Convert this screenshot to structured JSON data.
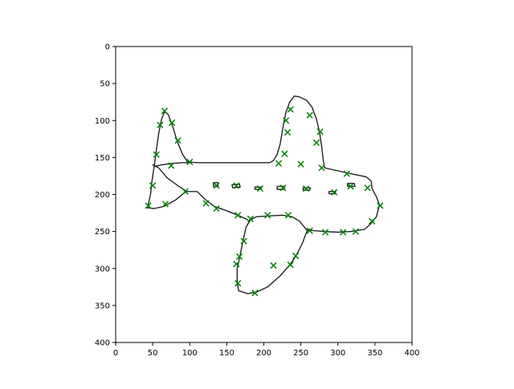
{
  "chart_data": {
    "type": "scatter",
    "title": "",
    "xlabel": "",
    "ylabel": "",
    "xlim": [
      0,
      400
    ],
    "ylim": [
      400,
      0
    ],
    "y_inverted": true,
    "grid": false,
    "x_ticks": [
      0,
      50,
      100,
      150,
      200,
      250,
      300,
      350,
      400
    ],
    "y_ticks": [
      0,
      50,
      100,
      150,
      200,
      250,
      300,
      350,
      400
    ],
    "x_tick_labels": [
      "0",
      "50",
      "100",
      "150",
      "200",
      "250",
      "300",
      "350",
      "400"
    ],
    "y_tick_labels": [
      "0",
      "50",
      "100",
      "150",
      "200",
      "250",
      "300",
      "350",
      "400"
    ],
    "series": [
      {
        "type": "line",
        "color": "#222222",
        "segments": [
          [
            [
              43,
              218
            ],
            [
              47,
              200
            ],
            [
              49,
              182
            ],
            [
              52,
              162
            ],
            [
              55,
              140
            ],
            [
              58,
              118
            ],
            [
              62,
              98
            ],
            [
              66,
              88
            ],
            [
              71,
              92
            ],
            [
              77,
              108
            ],
            [
              83,
              128
            ],
            [
              90,
              145
            ],
            [
              97,
              156
            ],
            [
              110,
              157
            ],
            [
              140,
              157
            ],
            [
              180,
              157
            ],
            [
              208,
              157
            ],
            [
              213,
              154
            ],
            [
              218,
              146
            ],
            [
              222,
              132
            ],
            [
              226,
              108
            ],
            [
              230,
              88
            ],
            [
              235,
              75
            ],
            [
              241,
              67
            ],
            [
              248,
              68
            ],
            [
              258,
              73
            ],
            [
              265,
              82
            ],
            [
              271,
              98
            ],
            [
              275,
              115
            ],
            [
              278,
              135
            ],
            [
              280,
              152
            ],
            [
              282,
              164
            ],
            [
              300,
              168
            ],
            [
              318,
              172
            ],
            [
              338,
              176
            ],
            [
              345,
              182
            ],
            [
              346,
              192
            ],
            [
              352,
              203
            ],
            [
              356,
              214
            ],
            [
              352,
              230
            ],
            [
              344,
              240
            ],
            [
              336,
              247
            ],
            [
              318,
              250
            ],
            [
              300,
              251
            ],
            [
              280,
              250
            ],
            [
              258,
              248
            ],
            [
              248,
              236
            ],
            [
              238,
              230
            ],
            [
              225,
              228
            ],
            [
              205,
              229
            ],
            [
              190,
              230
            ],
            [
              182,
              234
            ],
            [
              176,
              244
            ],
            [
              172,
              262
            ],
            [
              168,
              282
            ],
            [
              164,
              300
            ],
            [
              164,
              318
            ],
            [
              166,
              330
            ],
            [
              178,
              334
            ],
            [
              190,
              332
            ],
            [
              205,
              325
            ],
            [
              222,
              310
            ],
            [
              236,
              294
            ],
            [
              244,
              282
            ],
            [
              252,
              266
            ],
            [
              258,
              250
            ],
            [
              262,
              247
            ]
          ],
          [
            [
              43,
              218
            ],
            [
              52,
              219
            ],
            [
              65,
              216
            ],
            [
              80,
              208
            ],
            [
              95,
              196
            ],
            [
              110,
              196
            ],
            [
              120,
              206
            ],
            [
              133,
              216
            ],
            [
              150,
              222
            ],
            [
              165,
              228
            ],
            [
              178,
              234
            ]
          ],
          [
            [
              50,
              160
            ],
            [
              58,
              164
            ],
            [
              70,
              178
            ],
            [
              84,
              188
            ],
            [
              96,
              196
            ]
          ],
          [
            [
              52,
              162
            ],
            [
              62,
              160
            ],
            [
              75,
              158
            ],
            [
              90,
              157
            ],
            [
              100,
              157
            ]
          ],
          [
            [
              132,
              184
            ],
            [
              138,
              184
            ],
            [
              138,
              189
            ],
            [
              132,
              189
            ],
            [
              132,
              184
            ]
          ],
          [
            [
              157,
              187
            ],
            [
              167,
              186
            ],
            [
              168,
              190
            ],
            [
              158,
              191
            ],
            [
              157,
              187
            ]
          ],
          [
            [
              188,
              190
            ],
            [
              197,
              190
            ],
            [
              196,
              193
            ],
            [
              188,
              193
            ],
            [
              188,
              190
            ]
          ],
          [
            [
              218,
              189
            ],
            [
              228,
              189
            ],
            [
              227,
              193
            ],
            [
              218,
              193
            ],
            [
              218,
              189
            ]
          ],
          [
            [
              253,
              191
            ],
            [
              263,
              191
            ],
            [
              262,
              194
            ],
            [
              253,
              194
            ],
            [
              253,
              191
            ]
          ],
          [
            [
              288,
              196
            ],
            [
              297,
              196
            ],
            [
              296,
              199
            ],
            [
              288,
              199
            ],
            [
              288,
              196
            ]
          ],
          [
            [
              313,
              185
            ],
            [
              322,
              185
            ],
            [
              323,
              189
            ],
            [
              313,
              189
            ],
            [
              313,
              185
            ]
          ]
        ]
      },
      {
        "type": "scatter",
        "marker": "x",
        "color": "#008000",
        "x": [
          66,
          60,
          76,
          84,
          55,
          75,
          100,
          44,
          50,
          67,
          94,
          122,
          136,
          165,
          182,
          205,
          233,
          262,
          283,
          307,
          324,
          346,
          357,
          136,
          163,
          195,
          226,
          257,
          295,
          317,
          340,
          312,
          278,
          271,
          276,
          262,
          250,
          232,
          236,
          230,
          228,
          220,
          213,
          165,
          167,
          163,
          173,
          188,
          236,
          243
        ],
        "y": [
          87,
          106,
          103,
          127,
          146,
          161,
          156,
          215,
          188,
          213,
          196,
          212,
          219,
          228,
          233,
          228,
          228,
          249,
          251,
          251,
          250,
          236,
          215,
          188,
          188,
          192,
          191,
          192,
          197,
          189,
          191,
          172,
          164,
          130,
          115,
          93,
          159,
          116,
          85,
          100,
          145,
          158,
          296,
          320,
          284,
          294,
          263,
          333,
          295,
          283
        ]
      }
    ]
  }
}
